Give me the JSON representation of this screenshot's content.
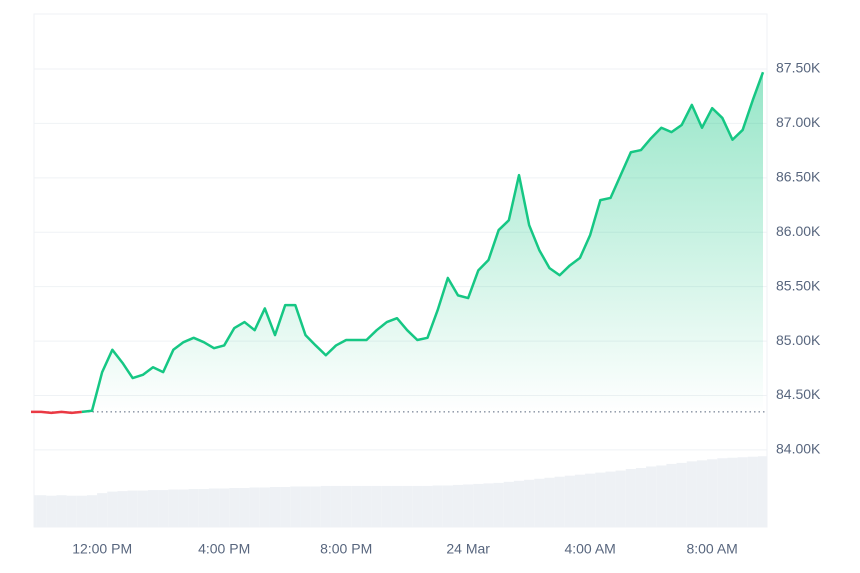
{
  "chart_data": {
    "type": "line",
    "categories": [
      null,
      null,
      null,
      null,
      null,
      null,
      null,
      "12:00 PM",
      null,
      null,
      null,
      null,
      null,
      null,
      null,
      null,
      null,
      null,
      null,
      "4:00 PM",
      null,
      null,
      null,
      null,
      null,
      null,
      null,
      null,
      null,
      null,
      null,
      "8:00 PM",
      null,
      null,
      null,
      null,
      null,
      null,
      null,
      null,
      null,
      null,
      null,
      "24 Mar",
      null,
      null,
      null,
      null,
      null,
      null,
      null,
      null,
      null,
      null,
      null,
      "4:00 AM",
      null,
      null,
      null,
      null,
      null,
      null,
      null,
      null,
      null,
      null,
      null,
      "8:00 AM",
      null,
      null,
      null,
      null,
      null
    ],
    "values": [
      84350,
      84350,
      84340,
      84350,
      84340,
      84350,
      84360,
      84715,
      84920,
      84800,
      84660,
      84690,
      84760,
      84715,
      84920,
      84990,
      85030,
      84990,
      84935,
      84960,
      85120,
      85175,
      85100,
      85300,
      85055,
      85330,
      85330,
      85055,
      84960,
      84870,
      84960,
      85010,
      85010,
      85010,
      85100,
      85175,
      85210,
      85100,
      85010,
      85030,
      85285,
      85580,
      85420,
      85395,
      85650,
      85745,
      86020,
      86110,
      86525,
      86065,
      85835,
      85670,
      85605,
      85695,
      85765,
      85975,
      86295,
      86315,
      86525,
      86735,
      86755,
      86865,
      86960,
      86920,
      86985,
      87170,
      86960,
      87140,
      87050,
      86850,
      86940,
      87215,
      87470
    ],
    "baseline": 84350,
    "up_color": "#16c784",
    "down_color": "#ea3943",
    "volume": [
      6.2,
      6.2,
      6.1,
      6.2,
      6.1,
      6.1,
      6.2,
      6.6,
      6.9,
      7.0,
      7.1,
      7.1,
      7.2,
      7.2,
      7.3,
      7.3,
      7.4,
      7.4,
      7.5,
      7.5,
      7.6,
      7.6,
      7.7,
      7.7,
      7.8,
      7.8,
      7.9,
      7.9,
      7.9,
      8.0,
      8.0,
      8.0,
      8.0,
      8.0,
      8.0,
      8.0,
      8.0,
      8.0,
      8.0,
      8.0,
      8.1,
      8.1,
      8.2,
      8.3,
      8.4,
      8.5,
      8.6,
      8.8,
      9.0,
      9.2,
      9.4,
      9.6,
      9.8,
      10.0,
      10.2,
      10.4,
      10.6,
      10.8,
      11.0,
      11.3,
      11.5,
      11.8,
      12.0,
      12.3,
      12.5,
      12.8,
      13.0,
      13.2,
      13.4,
      13.5,
      13.6,
      13.7,
      13.8
    ],
    "volume_lim": [
      0,
      100
    ],
    "ylim": [
      83292,
      88005
    ],
    "yticks": [
      {
        "value": 84000,
        "label": "84.00K"
      },
      {
        "value": 84500,
        "label": "84.50K"
      },
      {
        "value": 85000,
        "label": "85.00K"
      },
      {
        "value": 85500,
        "label": "85.50K"
      },
      {
        "value": 86000,
        "label": "86.00K"
      },
      {
        "value": 86500,
        "label": "86.50K"
      },
      {
        "value": 87000,
        "label": "87.00K"
      },
      {
        "value": 87500,
        "label": "87.50K"
      }
    ],
    "grid": true
  }
}
